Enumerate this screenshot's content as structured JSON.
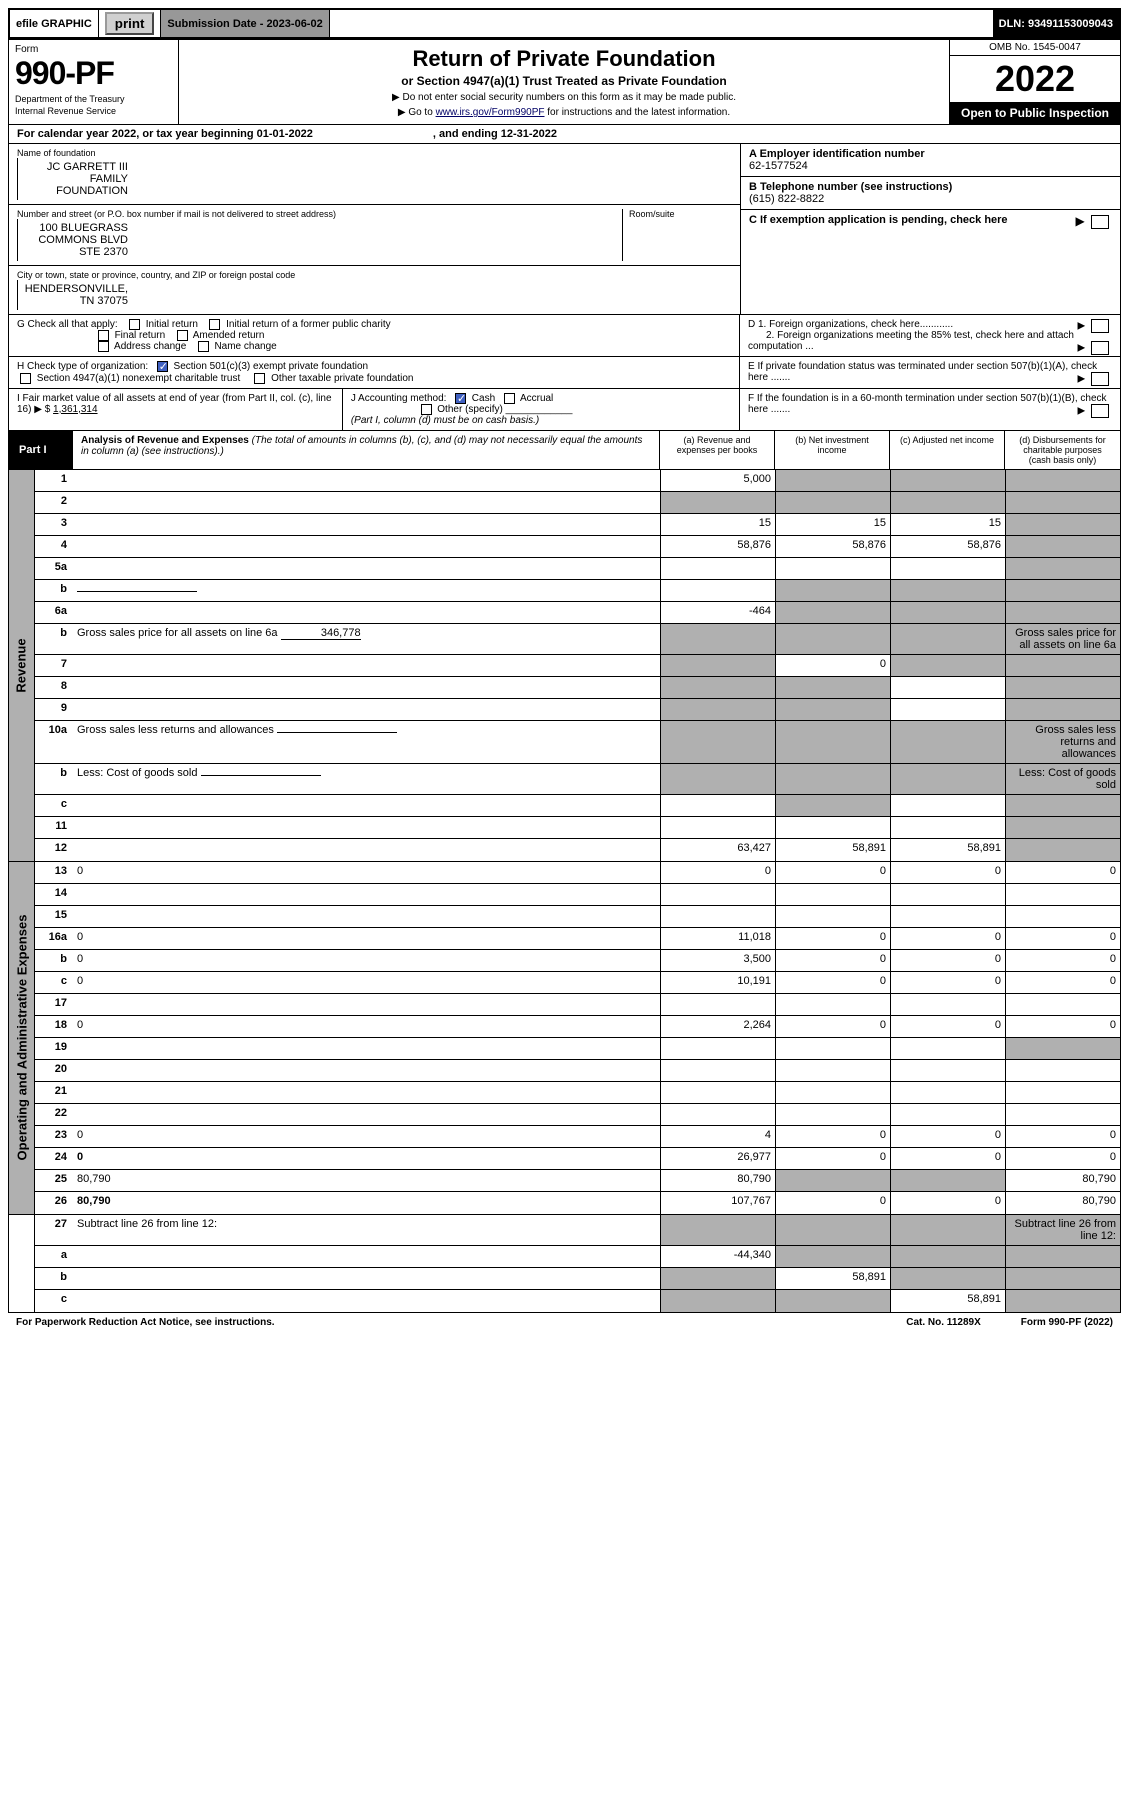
{
  "top": {
    "efile": "efile GRAPHIC",
    "print": "print",
    "sub_date": "Submission Date - 2023-06-02",
    "dln": "DLN: 93491153009043"
  },
  "header": {
    "form": "Form",
    "num": "990-PF",
    "dept": "Department of the Treasury",
    "irs": "Internal Revenue Service",
    "title": "Return of Private Foundation",
    "sub": "or Section 4947(a)(1) Trust Treated as Private Foundation",
    "instr1": "▶ Do not enter social security numbers on this form as it may be made public.",
    "instr2": "▶ Go to www.irs.gov/Form990PF for instructions and the latest information.",
    "link": "www.irs.gov/Form990PF",
    "omb": "OMB No. 1545-0047",
    "year": "2022",
    "open": "Open to Public Inspection"
  },
  "cy": {
    "text": "For calendar year 2022, or tax year beginning 01-01-2022",
    "end": ", and ending 12-31-2022"
  },
  "id": {
    "name_lbl": "Name of foundation",
    "name": "JC GARRETT III FAMILY FOUNDATION",
    "addr_lbl": "Number and street (or P.O. box number if mail is not delivered to street address)",
    "addr": "100 BLUEGRASS COMMONS BLVD STE 2370",
    "room_lbl": "Room/suite",
    "city_lbl": "City or town, state or province, country, and ZIP or foreign postal code",
    "city": "HENDERSONVILLE, TN  37075",
    "ein_lbl": "A Employer identification number",
    "ein": "62-1577524",
    "tel_lbl": "B Telephone number (see instructions)",
    "tel": "(615) 822-8822",
    "c": "C If exemption application is pending, check here",
    "d1": "D 1. Foreign organizations, check here",
    "d2": "2. Foreign organizations meeting the 85% test, check here and attach computation ...",
    "e": "E  If private foundation status was terminated under section 507(b)(1)(A), check here .......",
    "f": "F  If the foundation is in a 60-month termination under section 507(b)(1)(B), check here .......",
    "g": "G Check all that apply:",
    "g_items": [
      "Initial return",
      "Initial return of a former public charity",
      "Final return",
      "Amended return",
      "Address change",
      "Name change"
    ],
    "h": "H Check type of organization:",
    "h1": "Section 501(c)(3) exempt private foundation",
    "h2": "Section 4947(a)(1) nonexempt charitable trust",
    "h3": "Other taxable private foundation",
    "i": "I Fair market value of all assets at end of year (from Part II, col. (c), line 16)  ▶ $",
    "i_val": "1,361,314",
    "j": "J Accounting method:",
    "j_cash": "Cash",
    "j_accrual": "Accrual",
    "j_other": "Other (specify)",
    "j_note": "(Part I, column (d) must be on cash basis.)"
  },
  "part1": {
    "label": "Part I",
    "title": "Analysis of Revenue and Expenses",
    "title_note": "(The total of amounts in columns (b), (c), and (d) may not necessarily equal the amounts in column (a) (see instructions).)",
    "col_a": "(a) Revenue and expenses per books",
    "col_b": "(b) Net investment income",
    "col_c": "(c) Adjusted net income",
    "col_d": "(d) Disbursements for charitable purposes (cash basis only)"
  },
  "side_labels": {
    "revenue": "Revenue",
    "expenses": "Operating and Administrative Expenses"
  },
  "lines": {
    "l1": {
      "n": "1",
      "d": "",
      "a": "5,000",
      "b": "",
      "c": "",
      "bs": true,
      "cs": true,
      "ds": true
    },
    "l2": {
      "n": "2",
      "d": "",
      "a": "",
      "b": "",
      "c": "",
      "as": true,
      "bs": true,
      "cs": true,
      "ds": true
    },
    "l3": {
      "n": "3",
      "d": "",
      "a": "15",
      "b": "15",
      "c": "15",
      "ds": true
    },
    "l4": {
      "n": "4",
      "d": "",
      "a": "58,876",
      "b": "58,876",
      "c": "58,876",
      "ds": true
    },
    "l5a": {
      "n": "5a",
      "d": "",
      "a": "",
      "b": "",
      "c": "",
      "ds": true
    },
    "l5b": {
      "n": "b",
      "d": "",
      "a": "",
      "b": "",
      "c": "",
      "bs": true,
      "cs": true,
      "ds": true,
      "inline": true
    },
    "l6a": {
      "n": "6a",
      "d": "",
      "a": "-464",
      "b": "",
      "c": "",
      "bs": true,
      "cs": true,
      "ds": true
    },
    "l6b": {
      "n": "b",
      "d": "Gross sales price for all assets on line 6a",
      "sv": "346,778",
      "bs": true,
      "cs": true,
      "ds": true,
      "as": true,
      "inline": true
    },
    "l7": {
      "n": "7",
      "d": "",
      "a": "",
      "b": "0",
      "c": "",
      "as": true,
      "cs": true,
      "ds": true
    },
    "l8": {
      "n": "8",
      "d": "",
      "a": "",
      "b": "",
      "c": "",
      "as": true,
      "bs": true,
      "ds": true
    },
    "l9": {
      "n": "9",
      "d": "",
      "a": "",
      "b": "",
      "c": "",
      "as": true,
      "bs": true,
      "ds": true
    },
    "l10a": {
      "n": "10a",
      "d": "Gross sales less returns and allowances",
      "bs": true,
      "cs": true,
      "ds": true,
      "as": true,
      "inline": true
    },
    "l10b": {
      "n": "b",
      "d": "Less: Cost of goods sold",
      "bs": true,
      "cs": true,
      "ds": true,
      "as": true,
      "inline": true
    },
    "l10c": {
      "n": "c",
      "d": "",
      "a": "",
      "b": "",
      "c": "",
      "bs": true,
      "ds": true
    },
    "l11": {
      "n": "11",
      "d": "",
      "a": "",
      "b": "",
      "c": "",
      "ds": true
    },
    "l12": {
      "n": "12",
      "d": "",
      "a": "63,427",
      "b": "58,891",
      "c": "58,891",
      "bold": true,
      "ds": true
    },
    "l13": {
      "n": "13",
      "d": "0",
      "a": "0",
      "b": "0",
      "c": "0"
    },
    "l14": {
      "n": "14",
      "d": "",
      "a": "",
      "b": "",
      "c": ""
    },
    "l15": {
      "n": "15",
      "d": "",
      "a": "",
      "b": "",
      "c": ""
    },
    "l16a": {
      "n": "16a",
      "d": "0",
      "a": "11,018",
      "b": "0",
      "c": "0"
    },
    "l16b": {
      "n": "b",
      "d": "0",
      "a": "3,500",
      "b": "0",
      "c": "0"
    },
    "l16c": {
      "n": "c",
      "d": "0",
      "a": "10,191",
      "b": "0",
      "c": "0"
    },
    "l17": {
      "n": "17",
      "d": "",
      "a": "",
      "b": "",
      "c": ""
    },
    "l18": {
      "n": "18",
      "d": "0",
      "a": "2,264",
      "b": "0",
      "c": "0"
    },
    "l19": {
      "n": "19",
      "d": "",
      "a": "",
      "b": "",
      "c": "",
      "ds": true
    },
    "l20": {
      "n": "20",
      "d": "",
      "a": "",
      "b": "",
      "c": ""
    },
    "l21": {
      "n": "21",
      "d": "",
      "a": "",
      "b": "",
      "c": ""
    },
    "l22": {
      "n": "22",
      "d": "",
      "a": "",
      "b": "",
      "c": ""
    },
    "l23": {
      "n": "23",
      "d": "0",
      "a": "4",
      "b": "0",
      "c": "0"
    },
    "l24": {
      "n": "24",
      "d": "0",
      "a": "26,977",
      "b": "0",
      "c": "0",
      "bold": true
    },
    "l25": {
      "n": "25",
      "d": "80,790",
      "a": "80,790",
      "b": "",
      "c": "",
      "bs": true,
      "cs": true
    },
    "l26": {
      "n": "26",
      "d": "80,790",
      "a": "107,767",
      "b": "0",
      "c": "0",
      "bold": true
    },
    "l27": {
      "n": "27",
      "d": "Subtract line 26 from line 12:",
      "as": true,
      "bs": true,
      "cs": true,
      "ds": true
    },
    "l27a": {
      "n": "a",
      "d": "",
      "a": "-44,340",
      "b": "",
      "c": "",
      "bold": true,
      "bs": true,
      "cs": true,
      "ds": true
    },
    "l27b": {
      "n": "b",
      "d": "",
      "a": "",
      "b": "58,891",
      "c": "",
      "bold": true,
      "as": true,
      "cs": true,
      "ds": true
    },
    "l27c": {
      "n": "c",
      "d": "",
      "a": "",
      "b": "",
      "c": "58,891",
      "bold": true,
      "as": true,
      "bs": true,
      "ds": true
    }
  },
  "footer": {
    "left": "For Paperwork Reduction Act Notice, see instructions.",
    "mid": "Cat. No. 11289X",
    "right": "Form 990-PF (2022)"
  },
  "colors": {
    "shade": "#b0b0b0",
    "link": "#003399"
  }
}
